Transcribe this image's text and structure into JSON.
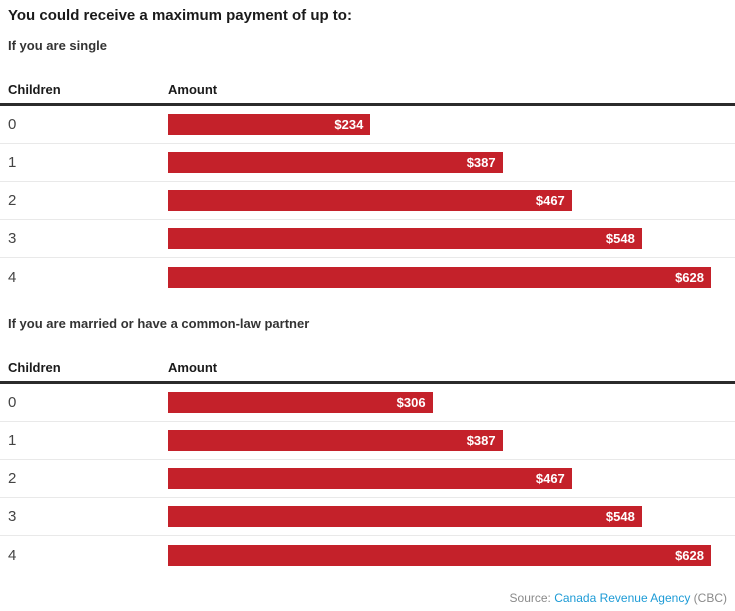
{
  "title": "You could receive a maximum payment of up to:",
  "colors": {
    "bar": "#c4212a",
    "link": "#1d9bd6",
    "header_rule": "#2b2b2b",
    "row_rule": "#e9e9e9",
    "source_text": "#8a8a8a"
  },
  "source": {
    "prefix": "Source:",
    "link_label": "Canada Revenue Agency",
    "suffix": "(CBC)"
  },
  "chart_data": [
    {
      "type": "bar",
      "title": "If you are single",
      "columns": [
        "Children",
        "Amount"
      ],
      "categories": [
        "0",
        "1",
        "2",
        "3",
        "4"
      ],
      "values": [
        234,
        387,
        467,
        548,
        628
      ],
      "labels": [
        "$234",
        "$387",
        "$467",
        "$548",
        "$628"
      ],
      "xlabel": "Amount",
      "ylabel": "Children",
      "xmax": 628,
      "grid": false,
      "legend": "none"
    },
    {
      "type": "bar",
      "title": "If you are married or have a common-law partner",
      "columns": [
        "Children",
        "Amount"
      ],
      "categories": [
        "0",
        "1",
        "2",
        "3",
        "4"
      ],
      "values": [
        306,
        387,
        467,
        548,
        628
      ],
      "labels": [
        "$306",
        "$387",
        "$467",
        "$548",
        "$628"
      ],
      "xlabel": "Amount",
      "ylabel": "Children",
      "xmax": 628,
      "grid": false,
      "legend": "none"
    }
  ]
}
